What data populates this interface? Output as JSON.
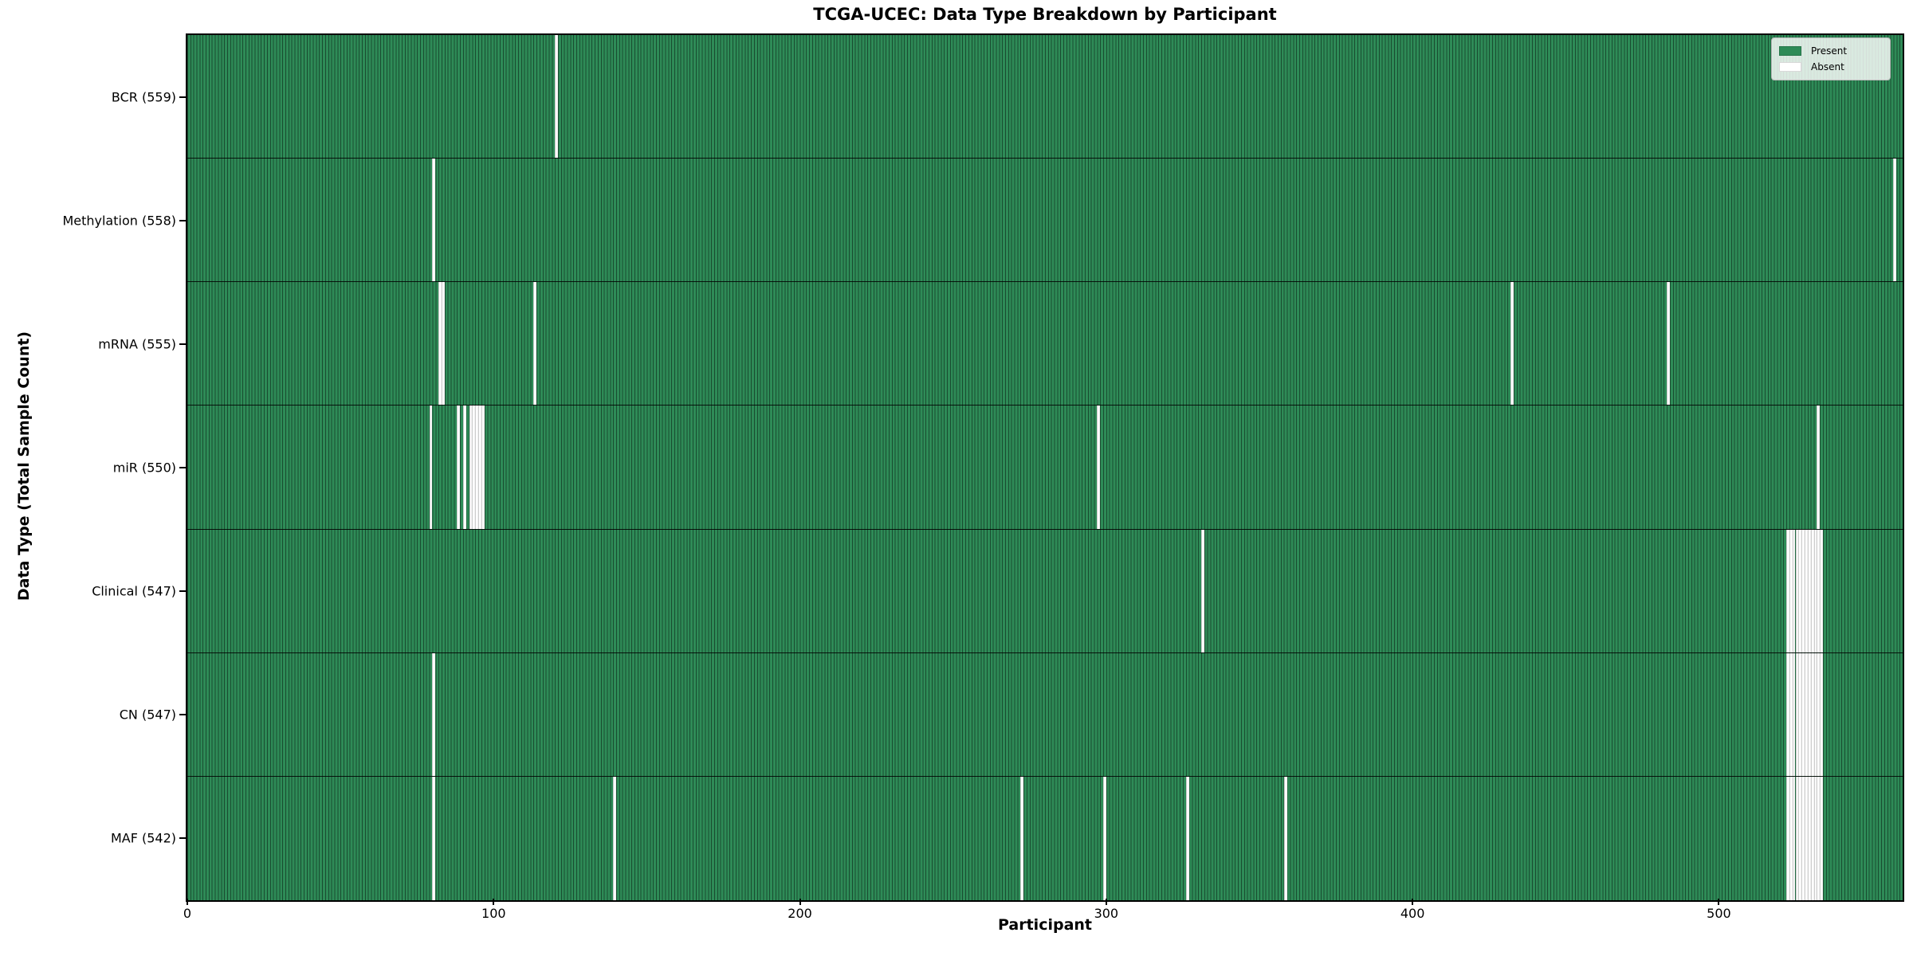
{
  "chart_data": {
    "type": "heatmap",
    "title": "TCGA-UCEC: Data Type Breakdown by Participant",
    "xlabel": "Participant",
    "ylabel": "Data Type (Total Sample Count)",
    "x_ticks": [
      0,
      100,
      200,
      300,
      400,
      500
    ],
    "x_range": [
      0,
      560
    ],
    "n_participants": 560,
    "grid": false,
    "legend_position": "upper-right",
    "colors": {
      "present": "#2E8B57",
      "absent": "#FFFFFF",
      "cell_edge": "rgba(0,0,0,0.45)",
      "row_divider": "#000000",
      "spine": "#000000"
    },
    "legend": [
      {
        "label": "Present",
        "key": "present"
      },
      {
        "label": "Absent",
        "key": "absent"
      }
    ],
    "rows": [
      {
        "label": "BCR (559)",
        "data_type": "BCR",
        "total": 559,
        "absent_participants": [
          120
        ]
      },
      {
        "label": "Methylation (558)",
        "data_type": "Methylation",
        "total": 558,
        "absent_participants": [
          80,
          557
        ]
      },
      {
        "label": "mRNA (555)",
        "data_type": "mRNA",
        "total": 555,
        "absent_participants": [
          82,
          83,
          113,
          432,
          483
        ]
      },
      {
        "label": "miR (550)",
        "data_type": "miR",
        "total": 550,
        "absent_participants": [
          79,
          88,
          90,
          92,
          93,
          94,
          95,
          96,
          297,
          532
        ]
      },
      {
        "label": "Clinical (547)",
        "data_type": "Clinical",
        "total": 547,
        "absent_participants": [
          331,
          522,
          523,
          524,
          525,
          526,
          527,
          528,
          529,
          530,
          531,
          532,
          533
        ]
      },
      {
        "label": "CN (547)",
        "data_type": "CN",
        "total": 547,
        "absent_participants": [
          80,
          522,
          523,
          524,
          525,
          526,
          527,
          528,
          529,
          530,
          531,
          532,
          533
        ]
      },
      {
        "label": "MAF (542)",
        "data_type": "MAF",
        "total": 542,
        "absent_participants": [
          80,
          139,
          272,
          299,
          326,
          358,
          522,
          523,
          524,
          525,
          526,
          527,
          528,
          529,
          530,
          531,
          532,
          533
        ]
      }
    ]
  }
}
